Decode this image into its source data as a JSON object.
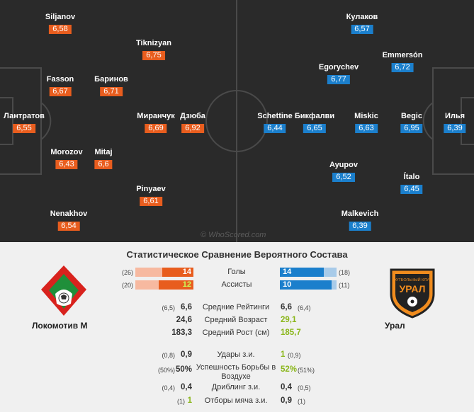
{
  "pitch": {
    "watermark": "© WhoScored.com",
    "home_players": [
      {
        "name": "Лантратов",
        "rating": "6,55"
      },
      {
        "name": "Siljanov",
        "rating": "6,58"
      },
      {
        "name": "Fasson",
        "rating": "6,67"
      },
      {
        "name": "Баринов",
        "rating": "6,71"
      },
      {
        "name": "Morozov",
        "rating": "6,43"
      },
      {
        "name": "Mitaj",
        "rating": "6,6"
      },
      {
        "name": "Nenakhov",
        "rating": "6,54"
      },
      {
        "name": "Tiknizyan",
        "rating": "6,75"
      },
      {
        "name": "Миранчук",
        "rating": "6,69"
      },
      {
        "name": "Дзюба",
        "rating": "6,92"
      },
      {
        "name": "Pinyaev",
        "rating": "6,61"
      }
    ],
    "away_players": [
      {
        "name": "Кулаков",
        "rating": "6,57"
      },
      {
        "name": "Emmersón",
        "rating": "6,72"
      },
      {
        "name": "Egorychev",
        "rating": "6,77"
      },
      {
        "name": "Schettine",
        "rating": "6,44"
      },
      {
        "name": "Бикфалви",
        "rating": "6,65"
      },
      {
        "name": "Miskic",
        "rating": "6,63"
      },
      {
        "name": "Begic",
        "rating": "6,95"
      },
      {
        "name": "Илья",
        "rating": "6,39"
      },
      {
        "name": "Ayupov",
        "rating": "6,52"
      },
      {
        "name": "Ítalo",
        "rating": "6,45"
      },
      {
        "name": "Malkevich",
        "rating": "6,39"
      }
    ]
  },
  "compare": {
    "title": "Статистическое Сравнение Вероятного Состава",
    "home_team": "Локомотив М",
    "away_team": "Урал",
    "away_logo_text": "УРАЛ",
    "away_logo_sub": "ФУТБОЛЬНЫЙ КЛУБ",
    "colors": {
      "home": "#e85d1e",
      "home_light": "#f7b9a0",
      "away": "#1b7fcc",
      "away_light": "#a8cbe9"
    },
    "bar_stats": [
      {
        "label": "Голы",
        "home_total": "(26)",
        "home": "14",
        "home_fraction": 0.54,
        "away": "14",
        "away_total": "(18)",
        "away_fraction": 0.78
      },
      {
        "label": "Ассисты",
        "home_total": "(20)",
        "home": "12",
        "home_fraction": 0.6,
        "away": "10",
        "away_total": "(11)",
        "away_fraction": 0.91
      }
    ],
    "stats_group1": [
      {
        "label": "Средние Рейтинги",
        "home_pre": "(6,5)",
        "home": "6,6",
        "away": "6,6",
        "away_post": "(6,4)",
        "winner": ""
      },
      {
        "label": "Средний Возраст",
        "home_pre": "",
        "home": "24,6",
        "away": "29,1",
        "away_post": "",
        "winner": "away"
      },
      {
        "label": "Средний Рост (см)",
        "home_pre": "",
        "home": "183,3",
        "away": "185,7",
        "away_post": "",
        "winner": "away"
      }
    ],
    "stats_group2": [
      {
        "label": "Удары з.и.",
        "home_pre": "(0,8)",
        "home": "0,9",
        "away": "1",
        "away_post": "(0,9)",
        "winner": "away"
      },
      {
        "label": "Успешность Борьбы в Воздухе",
        "home_pre": "(50%)",
        "home": "50%",
        "away": "52%",
        "away_post": "(51%)",
        "winner": "away"
      },
      {
        "label": "Дриблинг з.и.",
        "home_pre": "(0,4)",
        "home": "0,4",
        "away": "0,4",
        "away_post": "(0,5)",
        "winner": ""
      },
      {
        "label": "Отборы мяча з.и.",
        "home_pre": "(1)",
        "home": "1",
        "away": "0,9",
        "away_post": "(1)",
        "winner": "home"
      }
    ]
  }
}
